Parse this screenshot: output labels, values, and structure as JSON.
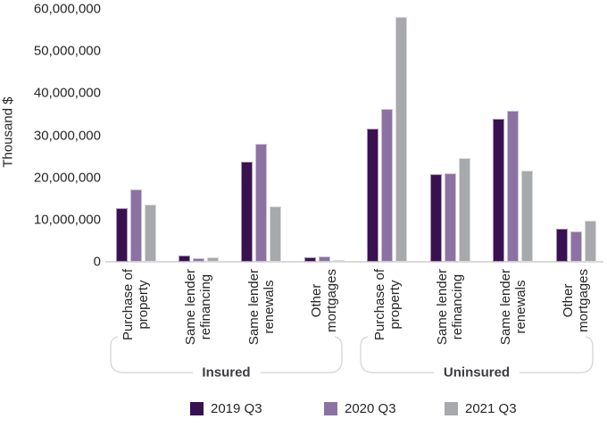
{
  "chart_data": {
    "type": "bar",
    "ylabel": "Thousand $",
    "ylim": [
      0,
      60000000
    ],
    "ytick_step": 10000000,
    "ytick_labels": [
      "0",
      "10,000,000",
      "20,000,000",
      "30,000,000",
      "40,000,000",
      "50,000,000",
      "60,000,000"
    ],
    "grid": false,
    "legend_position": "bottom",
    "groups": [
      {
        "label": "Insured",
        "categories": [
          [
            "Purchase of",
            "property"
          ],
          [
            "Same lender",
            "refinancing"
          ],
          [
            "Same lender",
            "renewals"
          ],
          [
            "Other",
            "mortgages"
          ]
        ]
      },
      {
        "label": "Uninsured",
        "categories": [
          [
            "Purchase of",
            "property"
          ],
          [
            "Same lender",
            "refinancing"
          ],
          [
            "Same lender",
            "renewals"
          ],
          [
            "Other",
            "mortgages"
          ]
        ]
      }
    ],
    "series": [
      {
        "name": "2019 Q3",
        "color": "#3A1150",
        "values": [
          12700000,
          1400000,
          23700000,
          1000000,
          31500000,
          20800000,
          33900000,
          7800000
        ]
      },
      {
        "name": "2020 Q3",
        "color": "#8C72A2",
        "values": [
          17200000,
          800000,
          27900000,
          1300000,
          36200000,
          21000000,
          35800000,
          7300000
        ]
      },
      {
        "name": "2021 Q3",
        "color": "#A7A9AC",
        "values": [
          13600000,
          1000000,
          13200000,
          500000,
          58100000,
          24500000,
          21600000,
          9700000
        ]
      }
    ],
    "axis_color": "#DADADA"
  }
}
